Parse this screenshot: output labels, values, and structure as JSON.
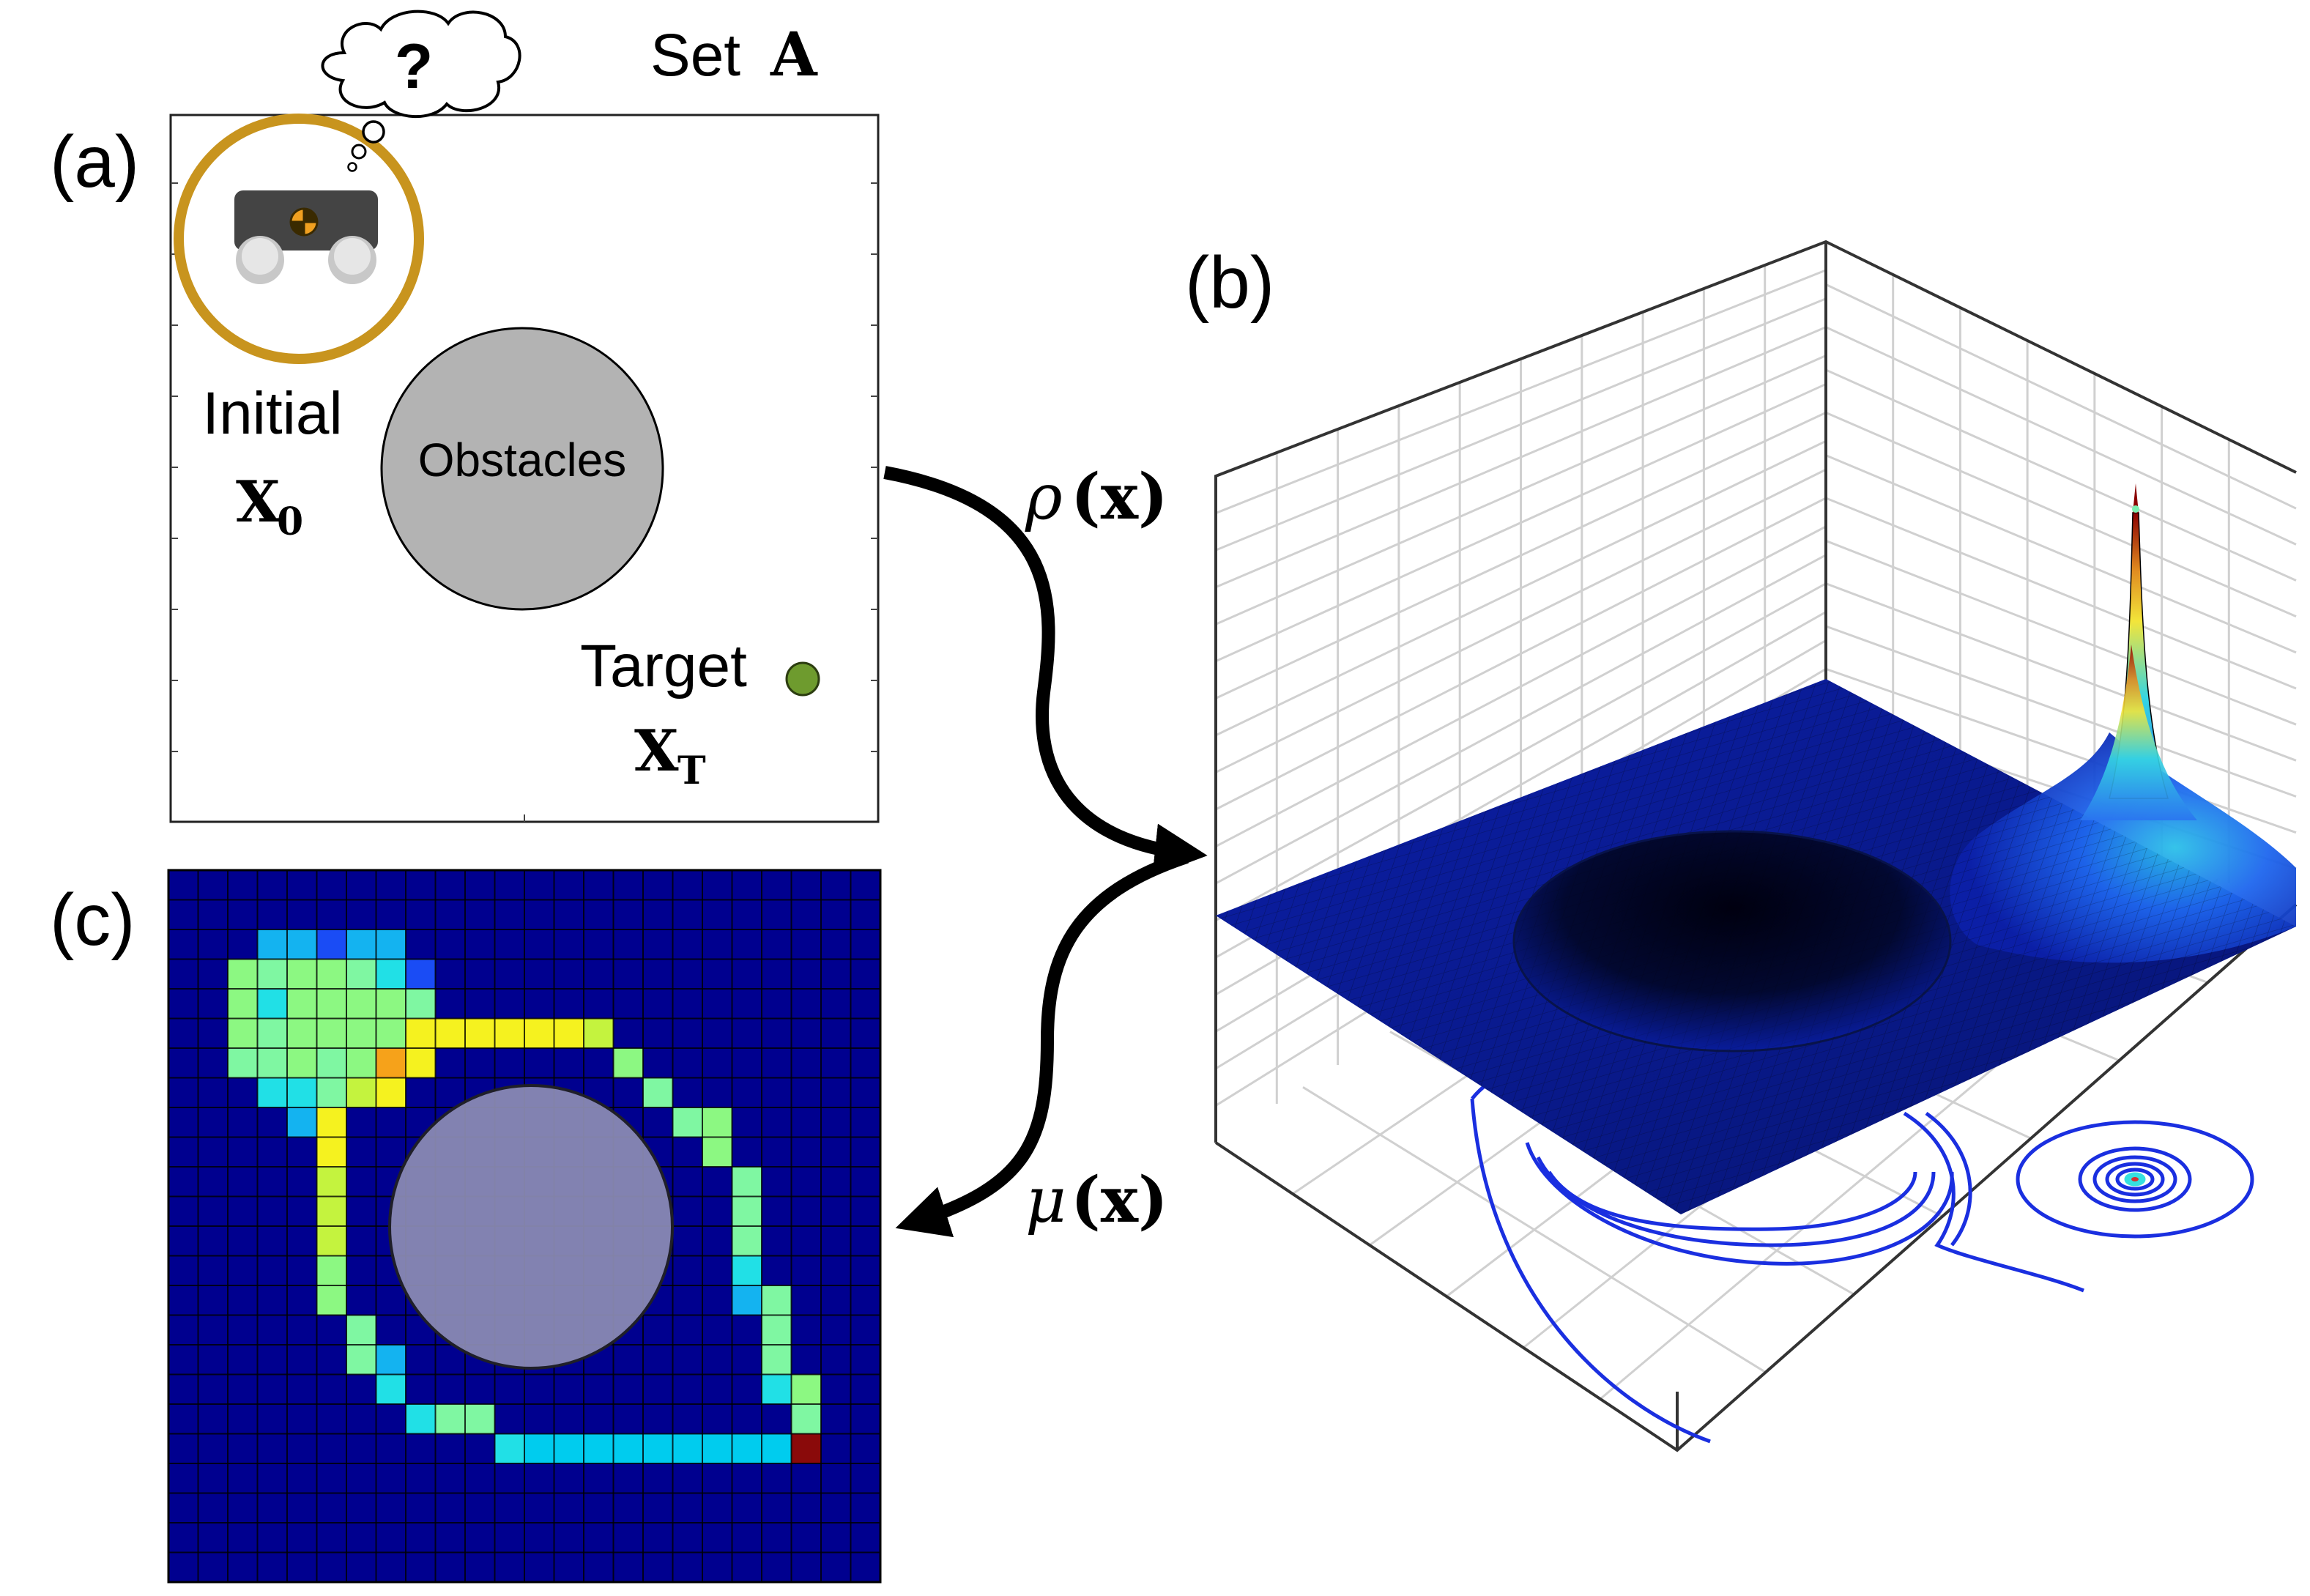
{
  "panel_a": {
    "label": "(a)",
    "set_title": "Set",
    "set_symbol": "A",
    "initial_label": "Initial",
    "initial_symbol": "X",
    "initial_subscript": "0",
    "obstacle_label": "Obstacles",
    "target_label": "Target",
    "target_symbol": "X",
    "target_subscript": "T",
    "thought_text": "?",
    "colors": {
      "initial_ring": "#C8941E",
      "obstacle_fill": "#B3B3B3",
      "target_fill": "#6E9B2E",
      "robot_body": "#444444"
    }
  },
  "panel_b": {
    "label": "(b)",
    "surface_color": "#0A1E9C",
    "peak_colors": [
      "#1E6FF0",
      "#2FD3E6",
      "#F2E63A",
      "#8B0000"
    ],
    "contour_color": "#1A2FE0"
  },
  "panel_c": {
    "label": "(c)",
    "background_color": "#00008F",
    "obstacle_fill": "#8C8CB4"
  },
  "arrows": {
    "rho_symbol": "ρ",
    "rho_arg": "(x)",
    "mu_symbol": "μ",
    "mu_arg": "(x)"
  }
}
